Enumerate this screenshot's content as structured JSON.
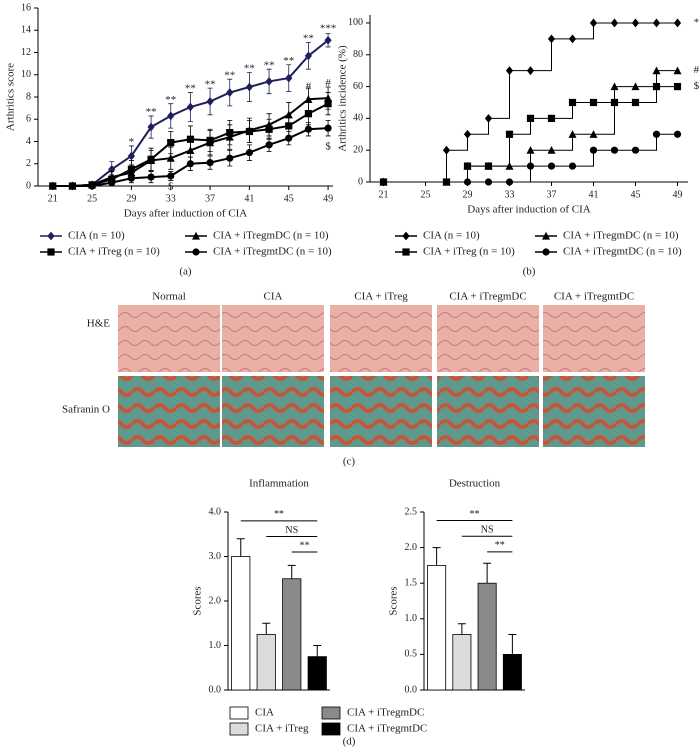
{
  "chart_data": [
    {
      "type": "line",
      "label": "(a)",
      "ylabel": "Arthritics score",
      "xlabel": "Days after induction of CIA",
      "x": [
        21,
        23,
        25,
        27,
        29,
        31,
        33,
        35,
        37,
        39,
        41,
        43,
        45,
        47,
        49
      ],
      "xlim": [
        19.5,
        49.5
      ],
      "xticks": [
        21,
        25,
        29,
        33,
        37,
        41,
        45,
        49
      ],
      "ylim": [
        0,
        16
      ],
      "yticks": [
        0,
        2,
        4,
        6,
        8,
        10,
        12,
        14,
        16
      ],
      "series": [
        {
          "name": "CIA (n = 10)",
          "color": "#1f1f5e",
          "marker": "diamond",
          "values": [
            0,
            0,
            0.1,
            1.5,
            2.7,
            5.3,
            6.3,
            7.1,
            7.6,
            8.4,
            8.9,
            9.4,
            9.7,
            11.7,
            13.1
          ],
          "errors": [
            0,
            0,
            0,
            0.7,
            0.9,
            1.0,
            1.1,
            1.3,
            1.2,
            1.2,
            1.3,
            1.1,
            1.2,
            1.2,
            0.6
          ]
        },
        {
          "name": "CIA + iTreg (n = 10)",
          "color": "#000000",
          "marker": "square",
          "values": [
            0,
            0,
            0.1,
            0.6,
            1.5,
            2.4,
            3.9,
            4.2,
            4.1,
            4.8,
            4.9,
            5.1,
            5.4,
            6.5,
            7.4
          ],
          "errors": [
            0,
            0,
            0,
            0.4,
            0.8,
            1.0,
            1.0,
            1.2,
            1.0,
            1.1,
            1.0,
            0.9,
            1.0,
            1.0,
            1.0
          ]
        },
        {
          "name": "CIA + iTregmDC (n = 10)",
          "color": "#000000",
          "marker": "triangle",
          "values": [
            0,
            0,
            0.1,
            0.8,
            1.2,
            2.3,
            2.5,
            3.2,
            3.9,
            4.4,
            5.0,
            5.5,
            6.4,
            7.8,
            7.9
          ],
          "errors": [
            0,
            0,
            0,
            0.5,
            0.7,
            0.9,
            1.0,
            1.0,
            1.1,
            1.1,
            1.1,
            1.0,
            1.1,
            1.0,
            1.0
          ]
        },
        {
          "name": "CIA + iTregmtDC (n = 10)",
          "color": "#000000",
          "marker": "circle",
          "values": [
            0,
            0,
            0,
            0.3,
            0.7,
            0.8,
            0.9,
            2.0,
            2.1,
            2.5,
            3.0,
            3.7,
            4.3,
            5.1,
            5.2
          ],
          "errors": [
            0,
            0,
            0,
            0.2,
            0.4,
            0.5,
            0.4,
            0.6,
            0.6,
            0.7,
            0.7,
            0.6,
            0.6,
            0.6,
            0.7
          ]
        }
      ],
      "annotations": [
        {
          "text": "*",
          "x": 29,
          "y": 3.9
        },
        {
          "text": "**",
          "x": 31,
          "y": 6.6
        },
        {
          "text": "**",
          "x": 33,
          "y": 7.7
        },
        {
          "text": "**",
          "x": 35,
          "y": 8.7
        },
        {
          "text": "**",
          "x": 37,
          "y": 9.1
        },
        {
          "text": "**",
          "x": 39,
          "y": 9.9
        },
        {
          "text": "**",
          "x": 41,
          "y": 10.5
        },
        {
          "text": "**",
          "x": 43,
          "y": 10.8
        },
        {
          "text": "**",
          "x": 45,
          "y": 11.2
        },
        {
          "text": "**",
          "x": 47,
          "y": 13.2
        },
        {
          "text": "***",
          "x": 49,
          "y": 14.1
        },
        {
          "text": "#",
          "x": 47,
          "y": 8.9
        },
        {
          "text": "#",
          "x": 49,
          "y": 9.2
        },
        {
          "text": "$",
          "x": 33,
          "y": -0.1
        },
        {
          "text": "$",
          "x": 49,
          "y": 3.5
        }
      ]
    },
    {
      "type": "line",
      "step": true,
      "label": "(b)",
      "ylabel": "Arthritics incidence (%)",
      "xlabel": "Days after induction of CIA",
      "x": [
        21,
        27,
        29,
        31,
        33,
        35,
        37,
        39,
        41,
        43,
        45,
        47,
        49
      ],
      "xlim": [
        20,
        50
      ],
      "xticks": [
        21,
        25,
        29,
        33,
        37,
        41,
        45,
        49
      ],
      "ylim": [
        0,
        105
      ],
      "yticks": [
        0,
        20,
        40,
        60,
        80,
        100
      ],
      "series": [
        {
          "name": "CIA (n = 10)",
          "color": "#000000",
          "marker": "diamond",
          "values": [
            0,
            20,
            30,
            40,
            70,
            70,
            90,
            90,
            100,
            100,
            100,
            100,
            100
          ]
        },
        {
          "name": "CIA + iTreg (n = 10)",
          "color": "#000000",
          "marker": "square",
          "values": [
            0,
            0,
            10,
            10,
            30,
            40,
            40,
            50,
            50,
            50,
            50,
            60,
            60
          ]
        },
        {
          "name": "CIA + iTregmDC (n = 10)",
          "color": "#000000",
          "marker": "triangle",
          "values": [
            0,
            0,
            10,
            10,
            10,
            20,
            20,
            30,
            30,
            60,
            60,
            70,
            70
          ]
        },
        {
          "name": "CIA + iTregmtDC (n = 10)",
          "color": "#000000",
          "marker": "circle",
          "values": [
            0,
            0,
            0,
            0,
            0,
            10,
            10,
            10,
            20,
            20,
            20,
            30,
            30
          ]
        }
      ],
      "annotations": [
        {
          "text": "*",
          "x": 50.8,
          "y": 100
        },
        {
          "text": "#",
          "x": 50.8,
          "y": 70
        },
        {
          "text": "$",
          "x": 50.8,
          "y": 60
        }
      ]
    },
    {
      "type": "bar",
      "title": "Inflammation",
      "ylabel": "Scores",
      "label": "(d)",
      "categories": [
        "CIA",
        "CIA + iTreg",
        "CIA + iTregmDC",
        "CIA + iTregmtDC"
      ],
      "colors": [
        "#ffffff",
        "#dcdcdc",
        "#8a8a8a",
        "#000000"
      ],
      "values": [
        3.0,
        1.25,
        2.5,
        0.75
      ],
      "errors": [
        0.4,
        0.25,
        0.3,
        0.25
      ],
      "ylim": [
        0,
        4
      ],
      "yticks": [
        {
          "value": 0,
          "label": "0.0"
        },
        {
          "value": 1,
          "label": "1.0"
        },
        {
          "value": 2,
          "label": "2.0"
        },
        {
          "value": 3,
          "label": "3.0"
        },
        {
          "value": 4,
          "label": "4.0"
        }
      ],
      "brackets": [
        {
          "text": "**",
          "from": 0,
          "to": 3,
          "y": 3.8
        },
        {
          "text": "NS",
          "from": 1,
          "to": 3,
          "y": 3.45
        },
        {
          "text": "**",
          "from": 2,
          "to": 3,
          "y": 3.1
        }
      ]
    },
    {
      "type": "bar",
      "title": "Destruction",
      "ylabel": "Scores",
      "colors": [
        "#ffffff",
        "#dcdcdc",
        "#8a8a8a",
        "#000000"
      ],
      "values": [
        1.75,
        0.78,
        1.5,
        0.5
      ],
      "errors": [
        0.25,
        0.15,
        0.28,
        0.28
      ],
      "ylim": [
        0,
        2.5
      ],
      "yticks": [
        {
          "value": 0,
          "label": "0.0"
        },
        {
          "value": 0.5,
          "label": "0.5"
        },
        {
          "value": 1,
          "label": "1.0"
        },
        {
          "value": 1.5,
          "label": "1.5"
        },
        {
          "value": 2,
          "label": "2.0"
        },
        {
          "value": 2.5,
          "label": "2.5"
        }
      ],
      "brackets": [
        {
          "text": "**",
          "from": 0,
          "to": 3,
          "y": 2.38
        },
        {
          "text": "NS",
          "from": 1,
          "to": 3,
          "y": 2.16
        },
        {
          "text": "**",
          "from": 2,
          "to": 3,
          "y": 1.94
        }
      ]
    }
  ],
  "image_panel": {
    "label": "(c)",
    "columns": [
      "Normal",
      "CIA",
      "CIA + iTreg",
      "CIA + iTregmDC",
      "CIA + iTregmtDC"
    ],
    "rows": [
      "H&E",
      "Safranin O"
    ]
  }
}
